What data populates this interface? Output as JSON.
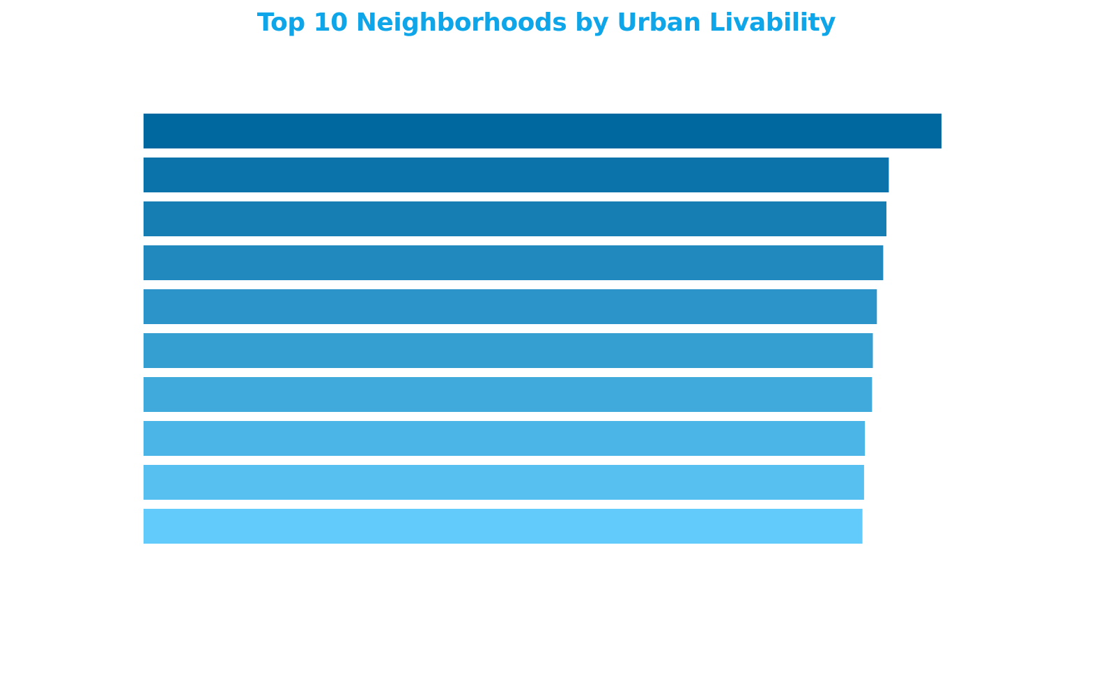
{
  "colors": {
    "title": "#0ea5e9",
    "bar_top": "#00689f",
    "bar_bottom": "#62cbfb"
  },
  "chart_data": {
    "type": "bar",
    "orientation": "horizontal",
    "title": "Top 10 Neighborhoods by Urban Livability",
    "series": [
      {
        "values": [
          100,
          93.4,
          93.1,
          92.7,
          91.9,
          91.4,
          91.3,
          90.4,
          90.3,
          90.1
        ]
      }
    ],
    "xlim": [
      0,
      100
    ],
    "grid": false,
    "legend": "none"
  }
}
